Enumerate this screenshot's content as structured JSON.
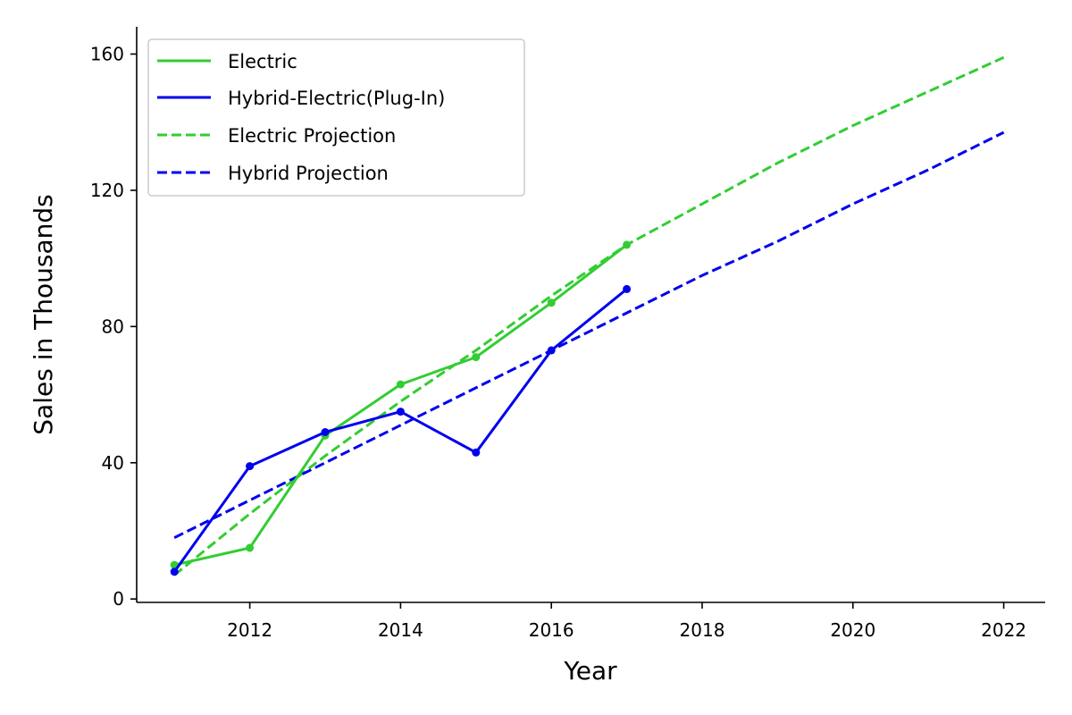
{
  "chart_data": {
    "type": "line",
    "title": "",
    "xlabel": "Year",
    "ylabel": "Sales in Thousands",
    "xlim": [
      2010.5,
      2022.55
    ],
    "ylim": [
      -1,
      168
    ],
    "xticks": [
      2012,
      2014,
      2016,
      2018,
      2020,
      2022
    ],
    "yticks": [
      0,
      40,
      80,
      120,
      160
    ],
    "grid": false,
    "legend_position": "top-left",
    "series": [
      {
        "name": "Electric",
        "style": "solid",
        "markers": true,
        "color": "#32cd32",
        "x": [
          2011,
          2012,
          2013,
          2014,
          2015,
          2016,
          2017
        ],
        "y": [
          10,
          15,
          48,
          63,
          71,
          87,
          104
        ]
      },
      {
        "name": "Hybrid-Electric(Plug-In)",
        "style": "solid",
        "markers": true,
        "color": "#0000ee",
        "x": [
          2011,
          2012,
          2013,
          2014,
          2015,
          2016,
          2017
        ],
        "y": [
          8,
          39,
          49,
          55,
          43,
          73,
          91
        ]
      },
      {
        "name": "Electric Projection",
        "style": "dashed",
        "markers": false,
        "color": "#32cd32",
        "x": [
          2011,
          2012,
          2013,
          2014,
          2015,
          2016,
          2017,
          2018,
          2019,
          2020,
          2021,
          2022
        ],
        "y": [
          7,
          25,
          42,
          58,
          73,
          89,
          104,
          116,
          128,
          139,
          149,
          159
        ]
      },
      {
        "name": "Hybrid Projection",
        "style": "dashed",
        "markers": false,
        "color": "#0000ee",
        "x": [
          2011,
          2012,
          2013,
          2014,
          2015,
          2016,
          2017,
          2018,
          2019,
          2020,
          2021,
          2022
        ],
        "y": [
          18,
          29,
          40,
          51,
          62,
          73,
          84,
          95,
          105,
          116,
          126,
          137
        ]
      }
    ]
  }
}
